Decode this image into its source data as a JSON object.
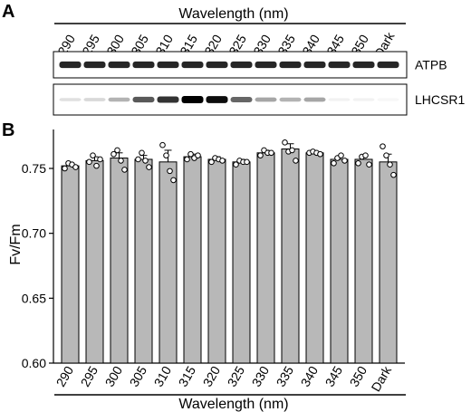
{
  "panel_a": {
    "letter": "A",
    "xlabel": "Wavelength (nm)",
    "lanes": [
      "290",
      "295",
      "300",
      "305",
      "310",
      "315",
      "320",
      "325",
      "330",
      "335",
      "340",
      "345",
      "350",
      "Dark"
    ],
    "blots": [
      {
        "name": "ATPB",
        "intensity": [
          0.85,
          0.85,
          0.85,
          0.85,
          0.85,
          0.85,
          0.85,
          0.85,
          0.85,
          0.85,
          0.85,
          0.85,
          0.85,
          0.85
        ]
      },
      {
        "name": "LHCSR1",
        "intensity": [
          0.12,
          0.15,
          0.3,
          0.65,
          0.8,
          1.0,
          0.95,
          0.6,
          0.35,
          0.3,
          0.35,
          0.05,
          0.05,
          0.03
        ]
      }
    ]
  },
  "chart_data": {
    "type": "bar",
    "panel": "B",
    "ylabel": "Fv/Fm",
    "xlabel": "Wavelength (nm)",
    "ylim": [
      0.6,
      0.78
    ],
    "yticks": [
      "0.60",
      "0.65",
      "0.70",
      "0.75"
    ],
    "categories": [
      "290",
      "295",
      "300",
      "305",
      "310",
      "315",
      "320",
      "325",
      "330",
      "335",
      "340",
      "345",
      "350",
      "Dark"
    ],
    "values": [
      0.752,
      0.756,
      0.758,
      0.757,
      0.755,
      0.759,
      0.757,
      0.755,
      0.762,
      0.765,
      0.762,
      0.757,
      0.757,
      0.755
    ],
    "sem": [
      0.002,
      0.003,
      0.004,
      0.003,
      0.009,
      0.002,
      0.002,
      0.002,
      0.002,
      0.004,
      0.001,
      0.002,
      0.003,
      0.006
    ],
    "points": [
      [
        0.75,
        0.754,
        0.753,
        0.751
      ],
      [
        0.755,
        0.76,
        0.752,
        0.757
      ],
      [
        0.761,
        0.764,
        0.756,
        0.749
      ],
      [
        0.757,
        0.762,
        0.756,
        0.751
      ],
      [
        0.768,
        0.76,
        0.748,
        0.741
      ],
      [
        0.757,
        0.761,
        0.758,
        0.76
      ],
      [
        0.755,
        0.758,
        0.757,
        0.756
      ],
      [
        0.753,
        0.756,
        0.755,
        0.755
      ],
      [
        0.76,
        0.764,
        0.762,
        0.762
      ],
      [
        0.77,
        0.763,
        0.764,
        0.756
      ],
      [
        0.762,
        0.763,
        0.762,
        0.761
      ],
      [
        0.754,
        0.758,
        0.76,
        0.756
      ],
      [
        0.754,
        0.759,
        0.76,
        0.753
      ],
      [
        0.767,
        0.76,
        0.753,
        0.745
      ]
    ],
    "bar_color": "#b8b8b8",
    "grid": false
  }
}
